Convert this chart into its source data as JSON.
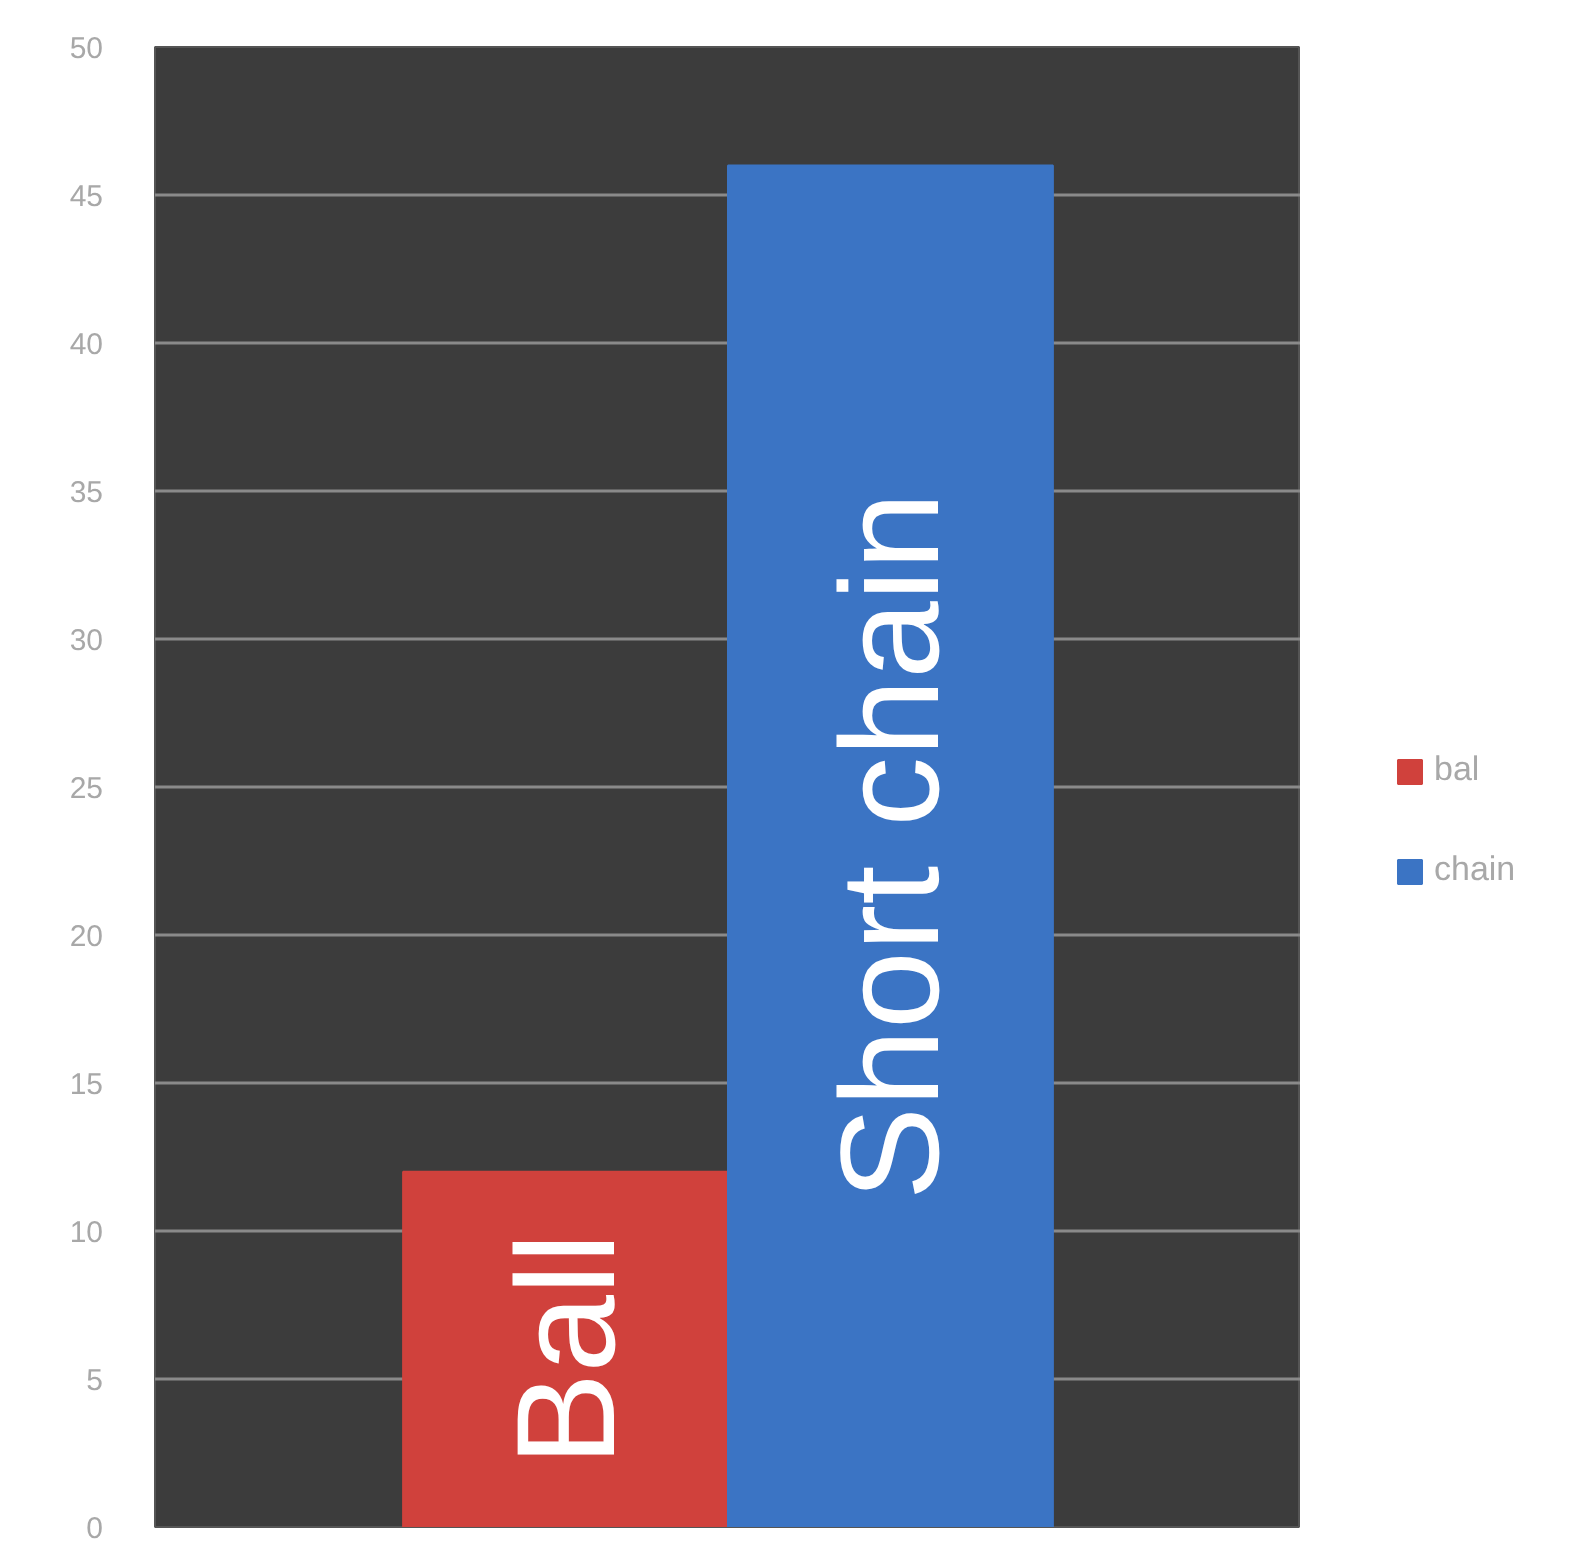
{
  "chart_data": {
    "type": "bar",
    "categories": [
      null
    ],
    "series": [
      {
        "name": "bal",
        "color": "#d0413c",
        "values": [
          12
        ]
      },
      {
        "name": "chain",
        "color": "#3b74c4",
        "values": [
          46
        ]
      }
    ],
    "ylim": [
      0,
      50
    ],
    "yticks": [
      0,
      5,
      10,
      15,
      20,
      25,
      30,
      35,
      40,
      45,
      50
    ],
    "annotations": [
      "Ball",
      "Short chain"
    ],
    "grid": "y",
    "legend": "right",
    "tick_labels": "y"
  }
}
